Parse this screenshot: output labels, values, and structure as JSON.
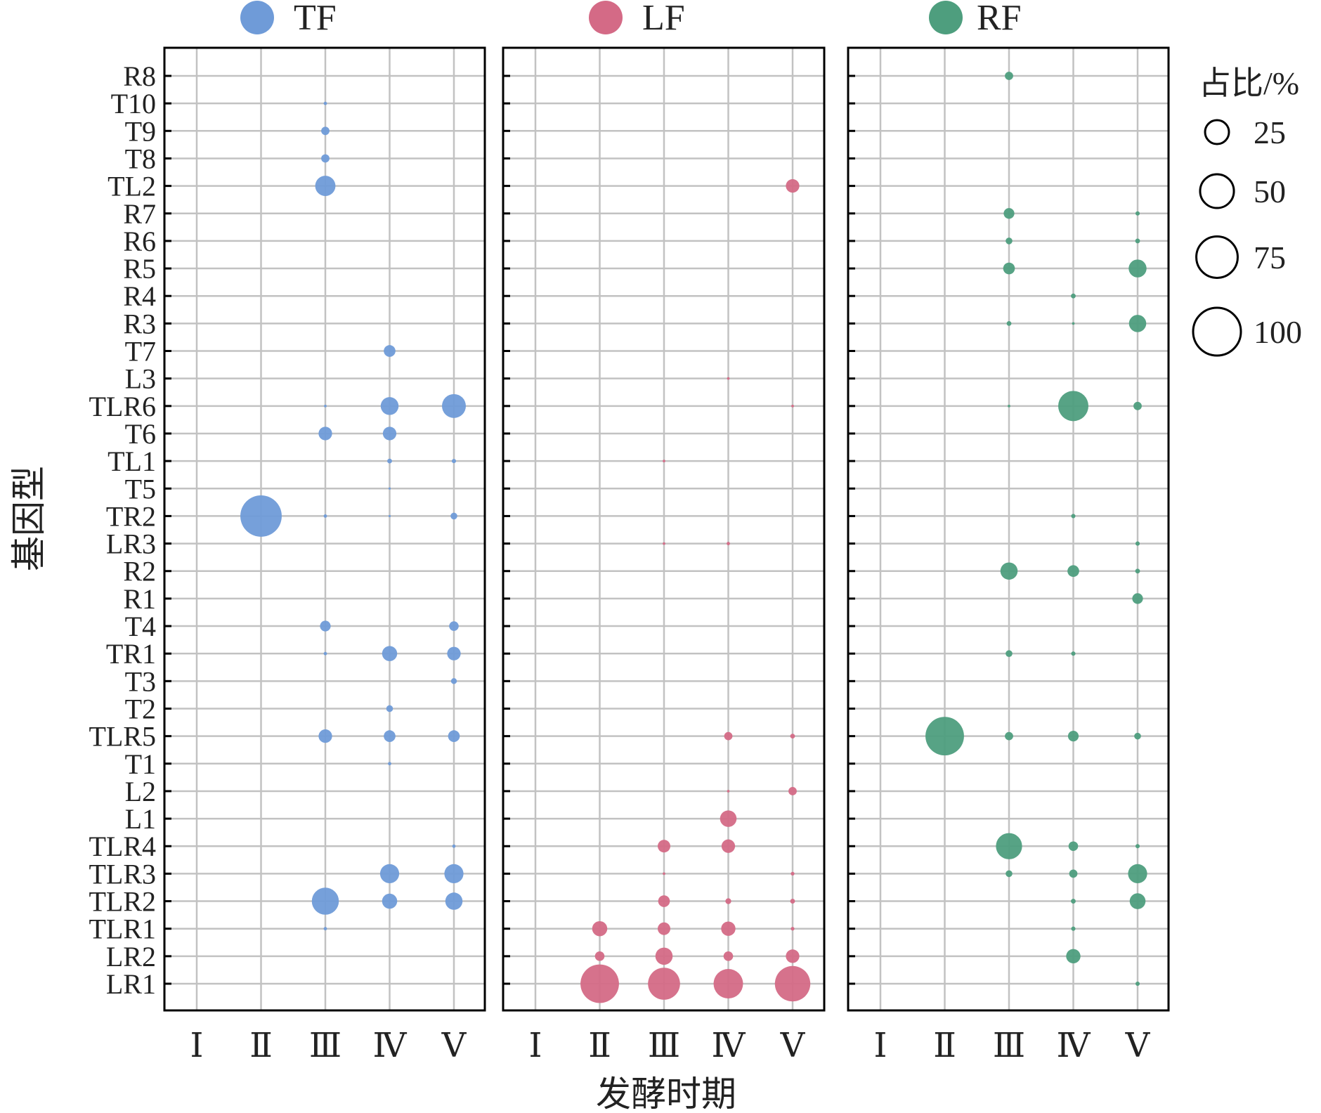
{
  "chart_data": {
    "type": "scatter",
    "subtype": "bubble-grid",
    "ylabel": "基因型",
    "xlabel": "发酵时期",
    "categories_x": [
      "Ⅰ",
      "Ⅱ",
      "Ⅲ",
      "Ⅳ",
      "Ⅴ"
    ],
    "categories_y_top_to_bottom": [
      "R8",
      "T10",
      "T9",
      "T8",
      "TL2",
      "R7",
      "R6",
      "R5",
      "R4",
      "R3",
      "T7",
      "L3",
      "TLR6",
      "T6",
      "TL1",
      "T5",
      "TR2",
      "LR3",
      "R2",
      "R1",
      "T4",
      "TR1",
      "T3",
      "T2",
      "TLR5",
      "T1",
      "L2",
      "L1",
      "TLR4",
      "TLR3",
      "TLR2",
      "TLR1",
      "LR2",
      "LR1"
    ],
    "size_legend": {
      "title": "占比/%",
      "values": [
        25,
        50,
        75,
        100
      ],
      "labels": [
        "25",
        "50",
        "75",
        "100"
      ]
    },
    "series": [
      {
        "name": "TF",
        "color": "#6f9bd8",
        "points": [
          {
            "genotype": "T10",
            "stage": "Ⅲ",
            "value": 0.5
          },
          {
            "genotype": "T9",
            "stage": "Ⅲ",
            "value": 3
          },
          {
            "genotype": "T8",
            "stage": "Ⅲ",
            "value": 3
          },
          {
            "genotype": "TL2",
            "stage": "Ⅲ",
            "value": 18
          },
          {
            "genotype": "T7",
            "stage": "Ⅳ",
            "value": 6
          },
          {
            "genotype": "TLR6",
            "stage": "Ⅲ",
            "value": 0.3
          },
          {
            "genotype": "TLR6",
            "stage": "Ⅳ",
            "value": 14
          },
          {
            "genotype": "TLR6",
            "stage": "Ⅴ",
            "value": 25
          },
          {
            "genotype": "T6",
            "stage": "Ⅲ",
            "value": 8
          },
          {
            "genotype": "T6",
            "stage": "Ⅳ",
            "value": 8
          },
          {
            "genotype": "TL1",
            "stage": "Ⅳ",
            "value": 1
          },
          {
            "genotype": "TL1",
            "stage": "Ⅴ",
            "value": 0.8
          },
          {
            "genotype": "T5",
            "stage": "Ⅳ",
            "value": 0.2
          },
          {
            "genotype": "TR2",
            "stage": "Ⅱ",
            "value": 75
          },
          {
            "genotype": "TR2",
            "stage": "Ⅲ",
            "value": 0.5
          },
          {
            "genotype": "TR2",
            "stage": "Ⅳ",
            "value": 0.2
          },
          {
            "genotype": "TR2",
            "stage": "Ⅴ",
            "value": 2
          },
          {
            "genotype": "T4",
            "stage": "Ⅲ",
            "value": 5
          },
          {
            "genotype": "T4",
            "stage": "Ⅴ",
            "value": 4
          },
          {
            "genotype": "TR1",
            "stage": "Ⅲ",
            "value": 0.5
          },
          {
            "genotype": "TR1",
            "stage": "Ⅳ",
            "value": 10
          },
          {
            "genotype": "TR1",
            "stage": "Ⅴ",
            "value": 8
          },
          {
            "genotype": "T3",
            "stage": "Ⅴ",
            "value": 1.5
          },
          {
            "genotype": "T2",
            "stage": "Ⅳ",
            "value": 2
          },
          {
            "genotype": "TLR5",
            "stage": "Ⅲ",
            "value": 8
          },
          {
            "genotype": "TLR5",
            "stage": "Ⅳ",
            "value": 6
          },
          {
            "genotype": "TLR5",
            "stage": "Ⅴ",
            "value": 6
          },
          {
            "genotype": "T1",
            "stage": "Ⅳ",
            "value": 0.5
          },
          {
            "genotype": "TLR4",
            "stage": "Ⅴ",
            "value": 0.5
          },
          {
            "genotype": "TLR3",
            "stage": "Ⅳ",
            "value": 16
          },
          {
            "genotype": "TLR3",
            "stage": "Ⅴ",
            "value": 16
          },
          {
            "genotype": "TLR2",
            "stage": "Ⅲ",
            "value": 32
          },
          {
            "genotype": "TLR2",
            "stage": "Ⅳ",
            "value": 10
          },
          {
            "genotype": "TLR2",
            "stage": "Ⅴ",
            "value": 13
          },
          {
            "genotype": "TLR1",
            "stage": "Ⅲ",
            "value": 0.5
          }
        ]
      },
      {
        "name": "LF",
        "color": "#d46a86",
        "points": [
          {
            "genotype": "TL2",
            "stage": "Ⅴ",
            "value": 8
          },
          {
            "genotype": "L3",
            "stage": "Ⅳ",
            "value": 0.3
          },
          {
            "genotype": "TLR6",
            "stage": "Ⅴ",
            "value": 0.3
          },
          {
            "genotype": "TL1",
            "stage": "Ⅲ",
            "value": 0.3
          },
          {
            "genotype": "LR3",
            "stage": "Ⅲ",
            "value": 0.3
          },
          {
            "genotype": "LR3",
            "stage": "Ⅳ",
            "value": 0.5
          },
          {
            "genotype": "TLR5",
            "stage": "Ⅳ",
            "value": 3
          },
          {
            "genotype": "TLR5",
            "stage": "Ⅴ",
            "value": 1
          },
          {
            "genotype": "L2",
            "stage": "Ⅳ",
            "value": 0.3
          },
          {
            "genotype": "L2",
            "stage": "Ⅴ",
            "value": 3
          },
          {
            "genotype": "L1",
            "stage": "Ⅳ",
            "value": 12
          },
          {
            "genotype": "TLR4",
            "stage": "Ⅲ",
            "value": 7
          },
          {
            "genotype": "TLR4",
            "stage": "Ⅳ",
            "value": 8
          },
          {
            "genotype": "TLR3",
            "stage": "Ⅲ",
            "value": 0.3
          },
          {
            "genotype": "TLR3",
            "stage": "Ⅴ",
            "value": 0.6
          },
          {
            "genotype": "TLR2",
            "stage": "Ⅲ",
            "value": 6
          },
          {
            "genotype": "TLR2",
            "stage": "Ⅳ",
            "value": 1.5
          },
          {
            "genotype": "TLR2",
            "stage": "Ⅴ",
            "value": 1
          },
          {
            "genotype": "TLR1",
            "stage": "Ⅱ",
            "value": 10
          },
          {
            "genotype": "TLR1",
            "stage": "Ⅲ",
            "value": 7
          },
          {
            "genotype": "TLR1",
            "stage": "Ⅳ",
            "value": 9
          },
          {
            "genotype": "TLR1",
            "stage": "Ⅴ",
            "value": 0.6
          },
          {
            "genotype": "LR2",
            "stage": "Ⅱ",
            "value": 4
          },
          {
            "genotype": "LR2",
            "stage": "Ⅲ",
            "value": 13
          },
          {
            "genotype": "LR2",
            "stage": "Ⅳ",
            "value": 4
          },
          {
            "genotype": "LR2",
            "stage": "Ⅴ",
            "value": 8
          },
          {
            "genotype": "LR1",
            "stage": "Ⅱ",
            "value": 65
          },
          {
            "genotype": "LR1",
            "stage": "Ⅲ",
            "value": 45
          },
          {
            "genotype": "LR1",
            "stage": "Ⅳ",
            "value": 38
          },
          {
            "genotype": "LR1",
            "stage": "Ⅴ",
            "value": 55
          }
        ]
      },
      {
        "name": "RF",
        "color": "#4e9e7e",
        "points": [
          {
            "genotype": "R8",
            "stage": "Ⅲ",
            "value": 3
          },
          {
            "genotype": "R7",
            "stage": "Ⅲ",
            "value": 5
          },
          {
            "genotype": "R7",
            "stage": "Ⅴ",
            "value": 0.8
          },
          {
            "genotype": "R6",
            "stage": "Ⅲ",
            "value": 2
          },
          {
            "genotype": "R6",
            "stage": "Ⅴ",
            "value": 1
          },
          {
            "genotype": "R5",
            "stage": "Ⅲ",
            "value": 6
          },
          {
            "genotype": "R5",
            "stage": "Ⅴ",
            "value": 14
          },
          {
            "genotype": "R4",
            "stage": "Ⅳ",
            "value": 1
          },
          {
            "genotype": "R3",
            "stage": "Ⅲ",
            "value": 1
          },
          {
            "genotype": "R3",
            "stage": "Ⅳ",
            "value": 0.3
          },
          {
            "genotype": "R3",
            "stage": "Ⅴ",
            "value": 13
          },
          {
            "genotype": "TLR6",
            "stage": "Ⅲ",
            "value": 0.3
          },
          {
            "genotype": "TLR6",
            "stage": "Ⅳ",
            "value": 40
          },
          {
            "genotype": "TLR6",
            "stage": "Ⅴ",
            "value": 3
          },
          {
            "genotype": "TR2",
            "stage": "Ⅳ",
            "value": 0.8
          },
          {
            "genotype": "LR3",
            "stage": "Ⅴ",
            "value": 0.8
          },
          {
            "genotype": "R2",
            "stage": "Ⅲ",
            "value": 13
          },
          {
            "genotype": "R2",
            "stage": "Ⅳ",
            "value": 6
          },
          {
            "genotype": "R2",
            "stage": "Ⅴ",
            "value": 1
          },
          {
            "genotype": "R1",
            "stage": "Ⅴ",
            "value": 5
          },
          {
            "genotype": "TR1",
            "stage": "Ⅲ",
            "value": 2
          },
          {
            "genotype": "TR1",
            "stage": "Ⅳ",
            "value": 0.8
          },
          {
            "genotype": "TLR5",
            "stage": "Ⅱ",
            "value": 65
          },
          {
            "genotype": "TLR5",
            "stage": "Ⅲ",
            "value": 3
          },
          {
            "genotype": "TLR5",
            "stage": "Ⅳ",
            "value": 5
          },
          {
            "genotype": "TLR5",
            "stage": "Ⅴ",
            "value": 2
          },
          {
            "genotype": "TLR4",
            "stage": "Ⅲ",
            "value": 30
          },
          {
            "genotype": "TLR4",
            "stage": "Ⅳ",
            "value": 4
          },
          {
            "genotype": "TLR4",
            "stage": "Ⅴ",
            "value": 0.8
          },
          {
            "genotype": "TLR3",
            "stage": "Ⅲ",
            "value": 2
          },
          {
            "genotype": "TLR3",
            "stage": "Ⅳ",
            "value": 3
          },
          {
            "genotype": "TLR3",
            "stage": "Ⅴ",
            "value": 16
          },
          {
            "genotype": "TLR2",
            "stage": "Ⅳ",
            "value": 1
          },
          {
            "genotype": "TLR2",
            "stage": "Ⅴ",
            "value": 11
          },
          {
            "genotype": "TLR1",
            "stage": "Ⅳ",
            "value": 0.8
          },
          {
            "genotype": "LR2",
            "stage": "Ⅳ",
            "value": 9
          },
          {
            "genotype": "LR1",
            "stage": "Ⅴ",
            "value": 0.8
          }
        ]
      }
    ]
  }
}
